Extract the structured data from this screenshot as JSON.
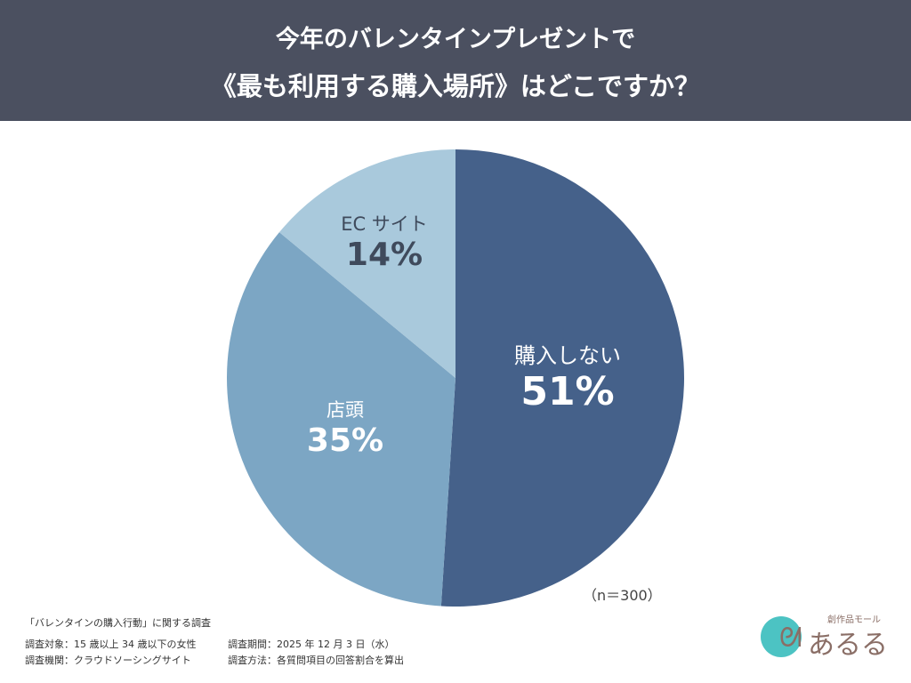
{
  "header": {
    "line1": "今年のバレンタインプレゼントで",
    "line2": "《最も利用する購入場所》はどこですか？"
  },
  "chart_data": {
    "type": "pie",
    "title": "今年のバレンタインプレゼントで《最も利用する購入場所》はどこですか？",
    "categories": [
      "購入しない",
      "店頭",
      "ECサイト"
    ],
    "values": [
      51,
      35,
      14
    ],
    "labels": {
      "c0": "購入しない",
      "p0": "51%",
      "c1": "店頭",
      "p1": "35%",
      "c2": "EC サイト",
      "p2": "14%"
    },
    "colors": [
      "#45618a",
      "#7ca6c4",
      "#a9c9dc"
    ],
    "start": "12 o'clock, clockwise",
    "sample": "（n＝300）"
  },
  "footer": {
    "title": "「バレンタインの購入行動」に関する調査",
    "target": "調査対象：15 歳以上 34 歳以下の女性",
    "period": "調査期間：2025 年 12 月 3 日（水）",
    "org": "調査機関：クラウドソーシングサイト",
    "method": "調査方法：各質問項目の回答割合を算出"
  },
  "logo": {
    "tagline": "創作品モール",
    "name": "あるる"
  }
}
